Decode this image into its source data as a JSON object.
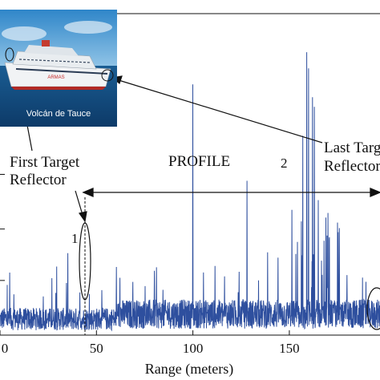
{
  "chart_data": {
    "type": "line",
    "title": "",
    "xlabel": "Range (meters)",
    "ylabel": "",
    "xlim": [
      0,
      197
    ],
    "ylim": [
      0,
      1
    ],
    "x_ticks": [
      0,
      50,
      100,
      150
    ],
    "x_tick_labels": [
      "0",
      "50",
      "100",
      "150"
    ],
    "series": [
      {
        "color": "#2e4f9e",
        "peaks": [
          {
            "x": 80,
            "y": 0.2
          },
          {
            "x": 100,
            "y": 0.78
          },
          {
            "x": 128,
            "y": 0.48
          },
          {
            "x": 157,
            "y": 0.62
          },
          {
            "x": 159,
            "y": 0.88
          },
          {
            "x": 160,
            "y": 0.83
          },
          {
            "x": 162,
            "y": 0.74
          },
          {
            "x": 163,
            "y": 0.71
          },
          {
            "x": 165,
            "y": 0.42
          },
          {
            "x": 170,
            "y": 0.38
          },
          {
            "x": 175,
            "y": 0.35
          }
        ],
        "noise_floor": 0.05
      }
    ],
    "annotations": [
      {
        "text": "PROFILE"
      },
      {
        "text": "First Target"
      },
      {
        "text": "Reflector"
      },
      {
        "text": "Last Targ"
      },
      {
        "text": "Reflector"
      },
      {
        "text": "1"
      },
      {
        "text": "2"
      }
    ],
    "inset": {
      "caption": "Volcán de Tauce",
      "ship_name": "ARMAS"
    }
  }
}
